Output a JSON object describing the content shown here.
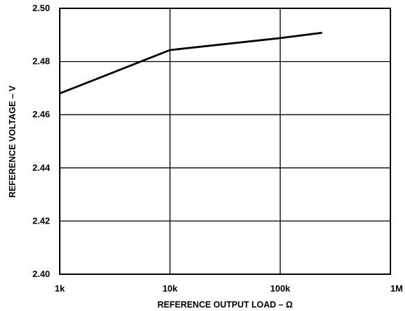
{
  "chart_data": {
    "type": "line",
    "title": "",
    "xlabel": "REFERENCE OUTPUT LOAD – Ω",
    "ylabel": "REFERENCE VOLTAGE – V",
    "x_scale": "log",
    "xlim": [
      1000,
      1000000
    ],
    "ylim": [
      2.4,
      2.5
    ],
    "grid": true,
    "x_ticks": [
      {
        "value": 1000,
        "label": "1k"
      },
      {
        "value": 10000,
        "label": "10k"
      },
      {
        "value": 100000,
        "label": "100k"
      },
      {
        "value": 1000000,
        "label": "1M"
      }
    ],
    "y_ticks": [
      {
        "value": 2.4,
        "label": "2.40"
      },
      {
        "value": 2.42,
        "label": "2.42"
      },
      {
        "value": 2.44,
        "label": "2.44"
      },
      {
        "value": 2.46,
        "label": "2.46"
      },
      {
        "value": 2.48,
        "label": "2.48"
      },
      {
        "value": 2.5,
        "label": "2.50"
      }
    ],
    "series": [
      {
        "x": [
          1000,
          10000,
          100000,
          240000
        ],
        "values": [
          2.468,
          2.4843,
          2.4888,
          2.4908
        ]
      }
    ]
  }
}
